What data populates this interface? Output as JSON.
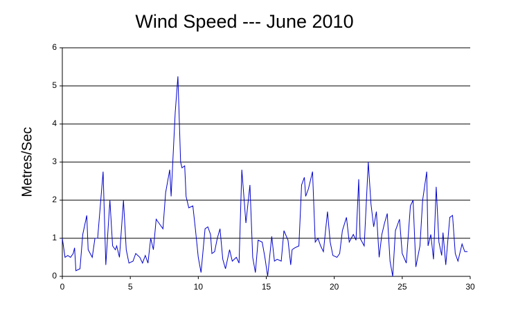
{
  "chart_data": {
    "type": "line",
    "title": "Wind Speed --- June 2010",
    "ylabel": "Metres/Sec",
    "color": "#0000cc",
    "x": [
      0,
      0.2,
      0.4,
      0.6,
      0.8,
      0.9,
      1.0,
      1.3,
      1.5,
      1.8,
      1.9,
      2.2,
      2.4,
      2.6,
      3.0,
      3.2,
      3.5,
      3.7,
      3.9,
      4.0,
      4.2,
      4.5,
      4.7,
      4.9,
      5.2,
      5.4,
      5.7,
      5.9,
      6.1,
      6.3,
      6.5,
      6.7,
      6.9,
      7.1,
      7.4,
      7.6,
      7.9,
      8.0,
      8.3,
      8.5,
      8.7,
      8.8,
      9.0,
      9.1,
      9.3,
      9.6,
      9.8,
      10.0,
      10.2,
      10.5,
      10.7,
      10.9,
      11.0,
      11.2,
      11.4,
      11.6,
      11.8,
      12.0,
      12.3,
      12.5,
      12.8,
      13.0,
      13.2,
      13.5,
      13.8,
      14.0,
      14.2,
      14.4,
      14.7,
      14.9,
      15.1,
      15.4,
      15.6,
      15.8,
      16.1,
      16.3,
      16.6,
      16.8,
      16.9,
      17.1,
      17.4,
      17.6,
      17.8,
      17.9,
      18.1,
      18.4,
      18.6,
      18.8,
      19.0,
      19.2,
      19.5,
      19.7,
      19.9,
      20.2,
      20.4,
      20.6,
      20.9,
      21.1,
      21.4,
      21.6,
      21.8,
      21.9,
      22.2,
      22.5,
      22.7,
      22.9,
      23.1,
      23.3,
      23.5,
      23.7,
      23.9,
      24.1,
      24.3,
      24.5,
      24.8,
      25.0,
      25.3,
      25.6,
      25.8,
      26.0,
      26.3,
      26.5,
      26.8,
      26.9,
      27.1,
      27.3,
      27.5,
      27.7,
      27.9,
      28.0,
      28.2,
      28.5,
      28.7,
      28.9,
      29.1,
      29.4,
      29.6,
      29.8
    ],
    "values": [
      1.0,
      0.5,
      0.55,
      0.5,
      0.6,
      0.75,
      0.15,
      0.2,
      1.1,
      1.6,
      0.7,
      0.5,
      1.0,
      1.0,
      2.75,
      0.3,
      2.0,
      0.8,
      0.7,
      0.8,
      0.5,
      2.0,
      0.7,
      0.35,
      0.4,
      0.6,
      0.5,
      0.35,
      0.55,
      0.35,
      1.0,
      0.7,
      1.5,
      1.4,
      1.25,
      2.2,
      2.8,
      2.1,
      4.3,
      5.25,
      3.0,
      2.85,
      2.9,
      2.1,
      1.8,
      1.85,
      1.2,
      0.5,
      0.1,
      1.25,
      1.3,
      1.1,
      0.6,
      0.65,
      1.0,
      1.25,
      0.45,
      0.2,
      0.7,
      0.4,
      0.5,
      0.35,
      2.8,
      1.4,
      2.4,
      0.5,
      0.1,
      0.95,
      0.9,
      0.5,
      0.0,
      1.05,
      0.4,
      0.45,
      0.4,
      1.2,
      0.95,
      0.3,
      0.7,
      0.75,
      0.8,
      2.4,
      2.6,
      2.1,
      2.3,
      2.75,
      0.9,
      1.0,
      0.8,
      0.65,
      1.7,
      0.9,
      0.55,
      0.5,
      0.6,
      1.2,
      1.55,
      0.9,
      1.1,
      0.95,
      2.55,
      1.0,
      0.8,
      3.0,
      1.9,
      1.3,
      1.7,
      0.5,
      1.1,
      1.4,
      1.65,
      0.4,
      0.0,
      1.2,
      1.5,
      0.6,
      0.35,
      1.85,
      2.0,
      0.25,
      0.8,
      2.0,
      2.75,
      0.8,
      1.1,
      0.45,
      2.35,
      0.9,
      0.55,
      1.15,
      0.3,
      1.55,
      1.6,
      0.6,
      0.4,
      0.85,
      0.65,
      0.65
    ],
    "xlim": [
      0,
      30
    ],
    "xticks": [
      0,
      5,
      10,
      15,
      20,
      25,
      30
    ],
    "ylim": [
      0,
      6
    ],
    "yticks": [
      0,
      1,
      2,
      3,
      4,
      5,
      6
    ],
    "grid": true
  }
}
